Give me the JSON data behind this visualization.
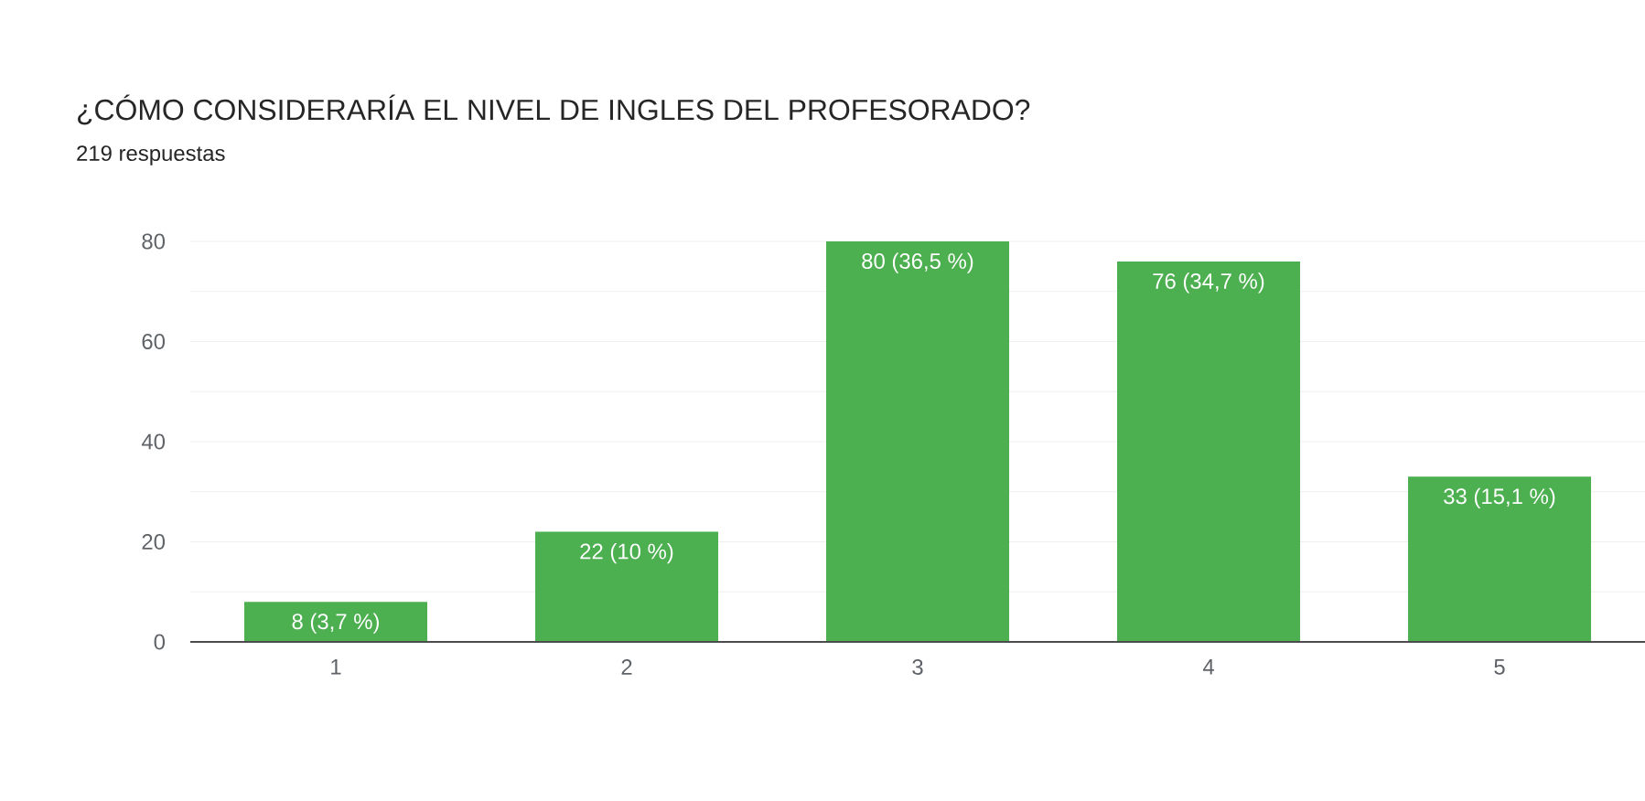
{
  "chart_data": {
    "type": "bar",
    "title": "¿CÓMO CONSIDERARÍA EL NIVEL DE INGLES DEL PROFESORADO?",
    "subtitle": "219 respuestas",
    "categories": [
      "1",
      "2",
      "3",
      "4",
      "5"
    ],
    "values": [
      8,
      22,
      80,
      76,
      33
    ],
    "value_labels": [
      "8 (3,7 %)",
      "22 (10 %)",
      "80 (36,5 %)",
      "76 (34,7 %)",
      "33 (15,1 %)"
    ],
    "color": "#4caf50",
    "ylim": [
      0,
      80
    ],
    "yticks": [
      0,
      {
        "value": 10,
        "label": null
      },
      20,
      {
        "value": 30,
        "label": null
      },
      40,
      {
        "value": 50,
        "label": null
      },
      60,
      {
        "value": 70,
        "label": null
      },
      80
    ],
    "grid": true
  }
}
